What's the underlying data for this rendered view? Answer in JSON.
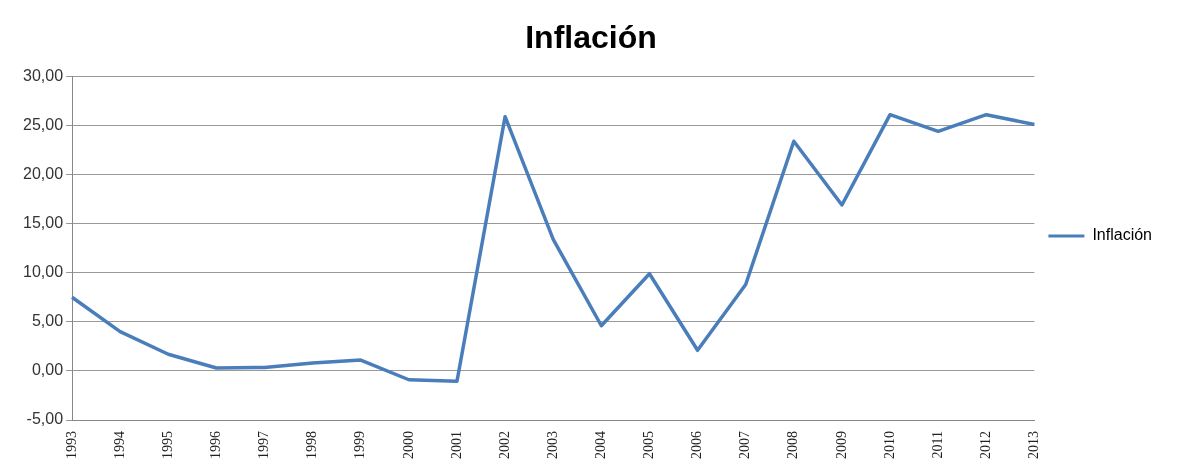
{
  "chart_data": {
    "type": "line",
    "title": "Inflación",
    "categories": [
      "1993",
      "1994",
      "1995",
      "1996",
      "1997",
      "1998",
      "1999",
      "2000",
      "2001",
      "2002",
      "2003",
      "2004",
      "2005",
      "2006",
      "2007",
      "2008",
      "2009",
      "2010",
      "2011",
      "2012",
      "2013"
    ],
    "series": [
      {
        "name": "Inflación",
        "color": "#4a7ebb",
        "values": [
          7.5,
          4.0,
          1.7,
          0.3,
          0.35,
          0.8,
          1.1,
          -0.9,
          -1.05,
          25.9,
          13.4,
          4.6,
          9.9,
          2.1,
          8.8,
          23.4,
          16.9,
          26.1,
          24.4,
          26.1,
          25.1
        ]
      }
    ],
    "ylim": [
      -5,
      30
    ],
    "yticks": [
      {
        "value": -5,
        "label": "-5,00"
      },
      {
        "value": 0,
        "label": "0,00"
      },
      {
        "value": 5,
        "label": "5,00"
      },
      {
        "value": 10,
        "label": "10,00"
      },
      {
        "value": 15,
        "label": "15,00"
      },
      {
        "value": 20,
        "label": "20,00"
      },
      {
        "value": 25,
        "label": "25,00"
      },
      {
        "value": 30,
        "label": "30,00"
      }
    ],
    "grid": "y",
    "legend": "right",
    "marker": "none",
    "line_style": "solid"
  }
}
